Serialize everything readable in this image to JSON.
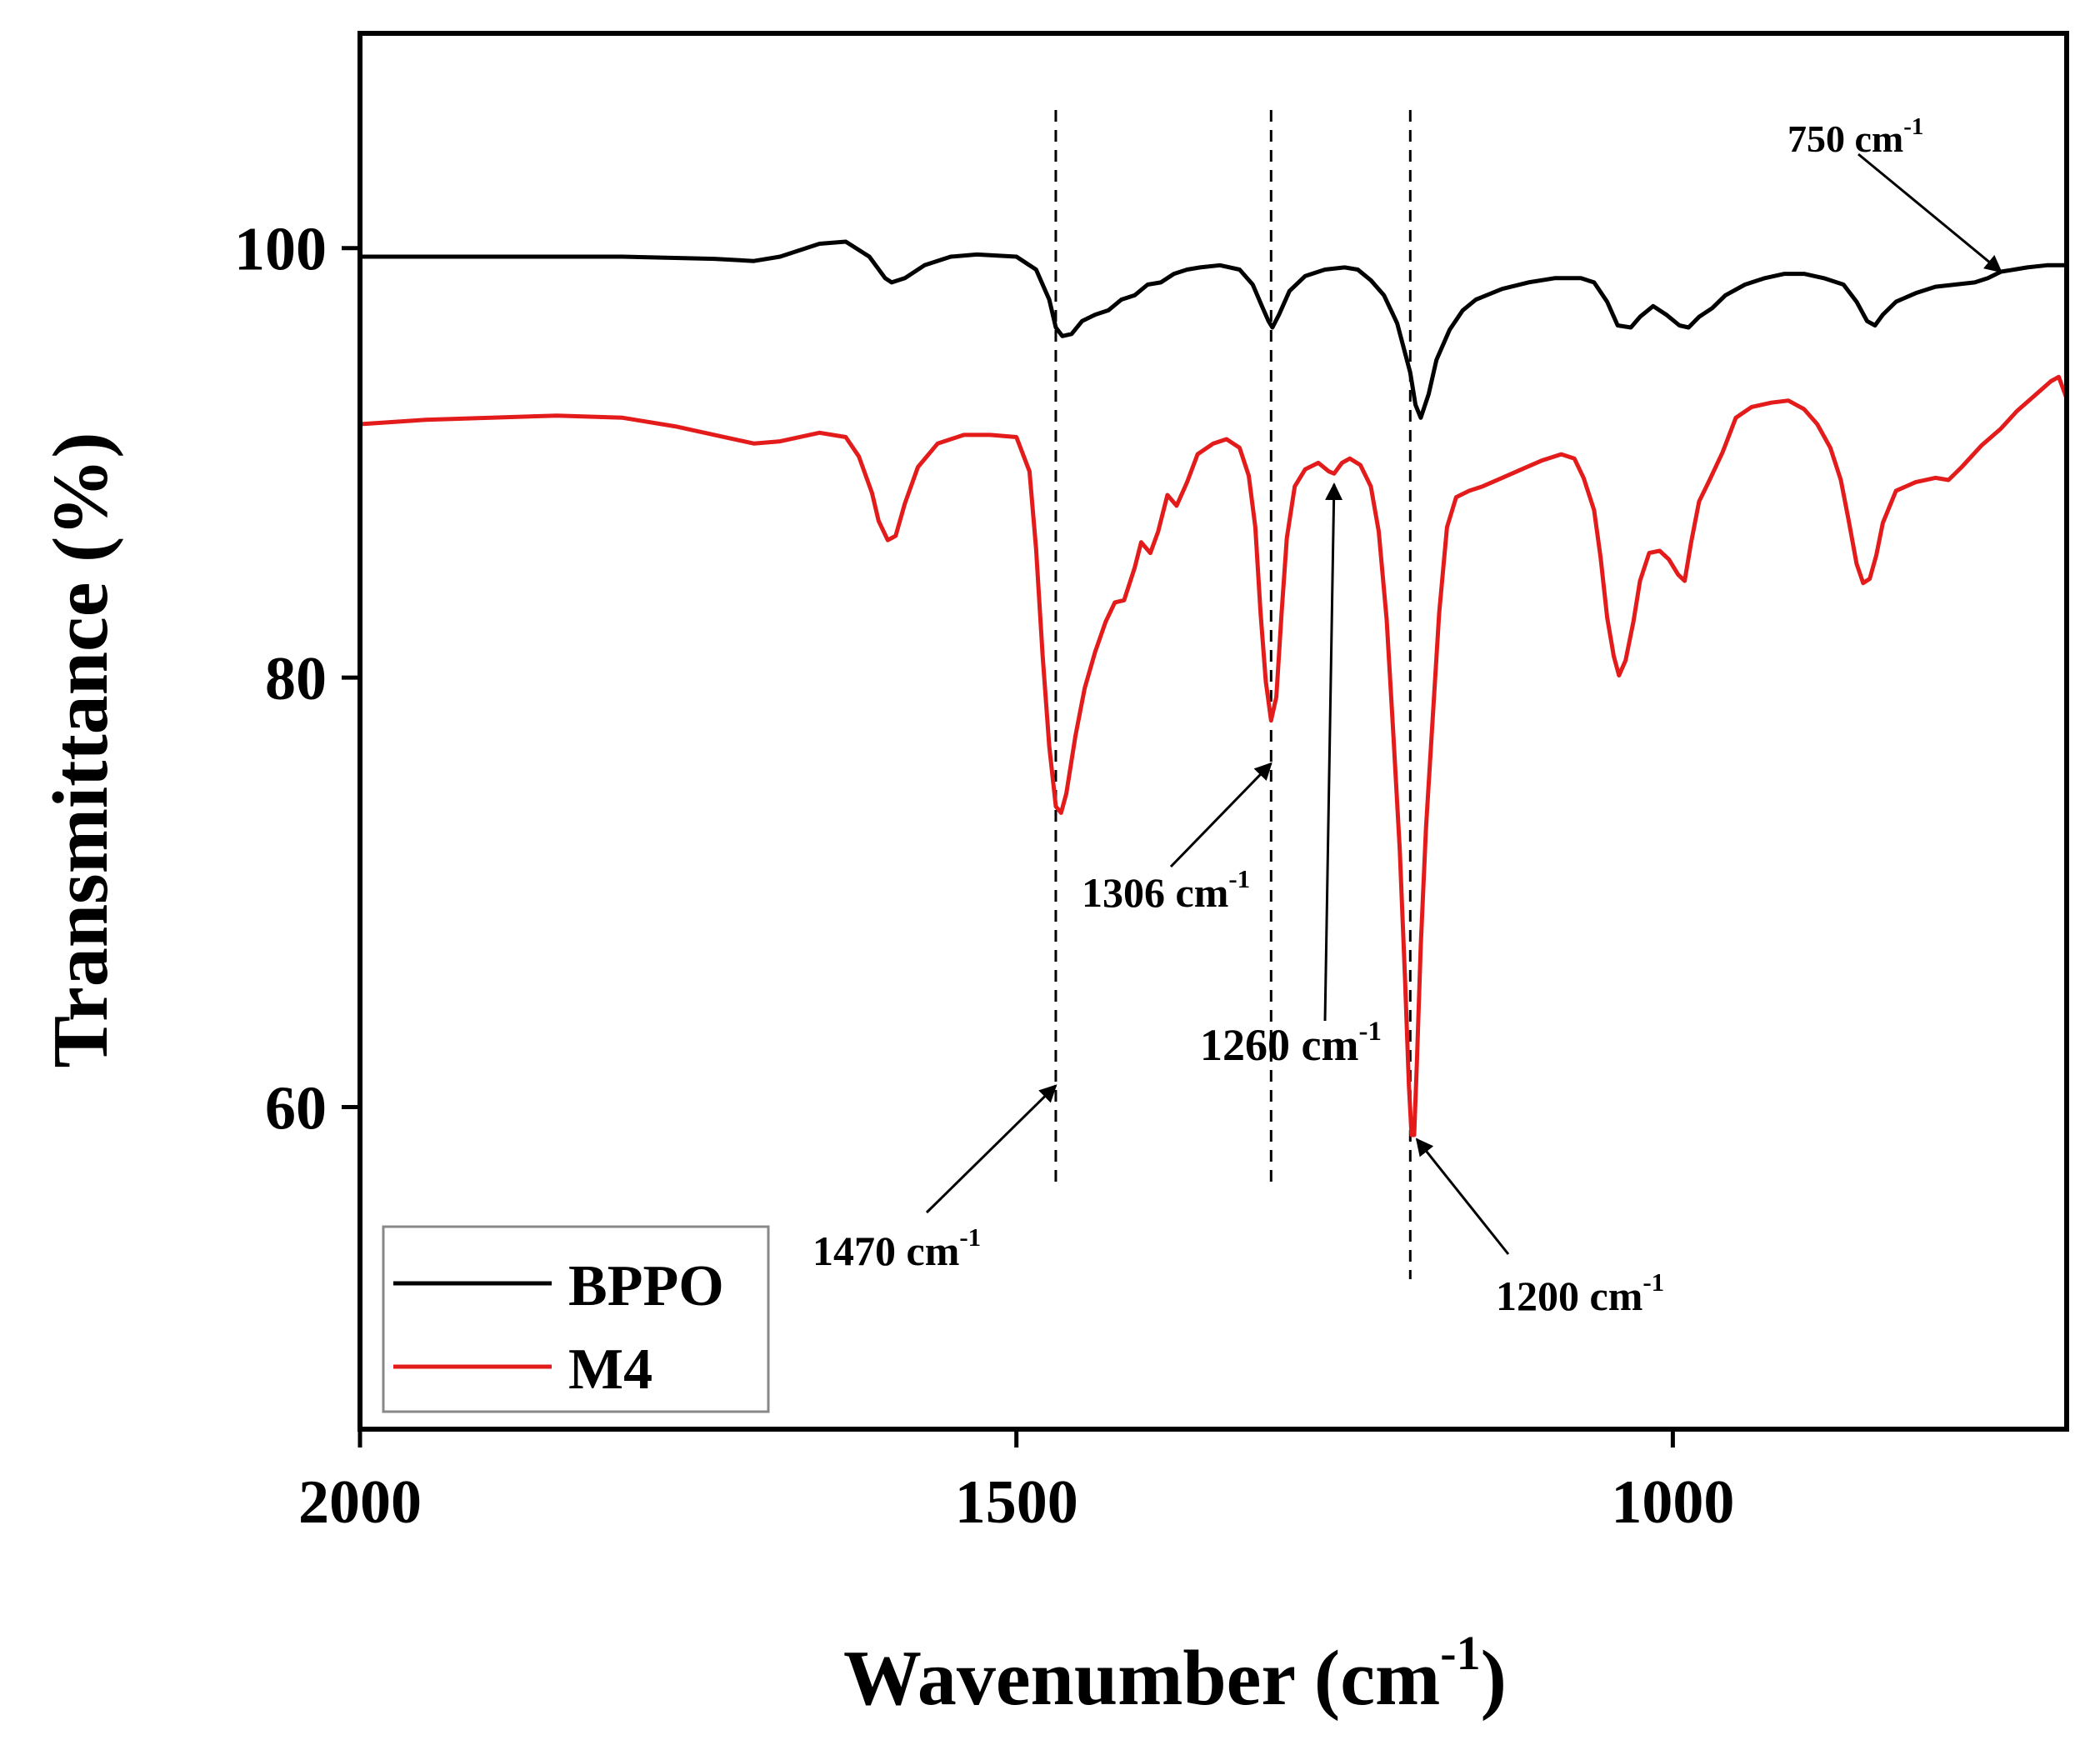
{
  "chart_data": {
    "type": "line",
    "xlabel": "Wavenumber (cm",
    "xlabel_sup": "-1",
    "xlabel_close": ")",
    "ylabel": "Transmittance (%)",
    "xlim": [
      2000,
      700
    ],
    "ylim": [
      45,
      110
    ],
    "x_reversed": true,
    "xticks": [
      2000,
      1500,
      1000
    ],
    "xtick_labels": [
      "2000",
      "1500",
      "1000"
    ],
    "yticks": [
      60,
      80,
      100
    ],
    "ytick_labels": [
      "60",
      "80",
      "100"
    ],
    "legend_position": "bottom-left",
    "series": [
      {
        "name": "BPPO",
        "color": "#000000",
        "points": [
          [
            2000,
            99.6
          ],
          [
            1900,
            99.6
          ],
          [
            1800,
            99.6
          ],
          [
            1730,
            99.5
          ],
          [
            1700,
            99.4
          ],
          [
            1680,
            99.6
          ],
          [
            1650,
            100.2
          ],
          [
            1630,
            100.3
          ],
          [
            1612,
            99.6
          ],
          [
            1600,
            98.6
          ],
          [
            1595,
            98.4
          ],
          [
            1585,
            98.6
          ],
          [
            1570,
            99.2
          ],
          [
            1550,
            99.6
          ],
          [
            1530,
            99.7
          ],
          [
            1500,
            99.6
          ],
          [
            1485,
            99.0
          ],
          [
            1475,
            97.6
          ],
          [
            1470,
            96.3
          ],
          [
            1465,
            95.9
          ],
          [
            1458,
            96.0
          ],
          [
            1450,
            96.6
          ],
          [
            1440,
            96.9
          ],
          [
            1430,
            97.1
          ],
          [
            1420,
            97.6
          ],
          [
            1410,
            97.8
          ],
          [
            1400,
            98.3
          ],
          [
            1390,
            98.4
          ],
          [
            1380,
            98.8
          ],
          [
            1370,
            99.0
          ],
          [
            1360,
            99.1
          ],
          [
            1345,
            99.2
          ],
          [
            1330,
            99.0
          ],
          [
            1320,
            98.3
          ],
          [
            1313,
            97.3
          ],
          [
            1308,
            96.6
          ],
          [
            1305,
            96.3
          ],
          [
            1300,
            96.9
          ],
          [
            1292,
            98.0
          ],
          [
            1280,
            98.7
          ],
          [
            1265,
            99.0
          ],
          [
            1250,
            99.1
          ],
          [
            1240,
            99.0
          ],
          [
            1230,
            98.5
          ],
          [
            1220,
            97.8
          ],
          [
            1210,
            96.5
          ],
          [
            1200,
            94.2
          ],
          [
            1196,
            92.7
          ],
          [
            1192,
            92.1
          ],
          [
            1186,
            93.2
          ],
          [
            1180,
            94.8
          ],
          [
            1170,
            96.2
          ],
          [
            1160,
            97.1
          ],
          [
            1150,
            97.6
          ],
          [
            1130,
            98.1
          ],
          [
            1110,
            98.4
          ],
          [
            1090,
            98.6
          ],
          [
            1070,
            98.6
          ],
          [
            1060,
            98.4
          ],
          [
            1050,
            97.5
          ],
          [
            1042,
            96.4
          ],
          [
            1032,
            96.3
          ],
          [
            1025,
            96.8
          ],
          [
            1015,
            97.3
          ],
          [
            1005,
            96.9
          ],
          [
            995,
            96.4
          ],
          [
            988,
            96.3
          ],
          [
            980,
            96.8
          ],
          [
            970,
            97.2
          ],
          [
            960,
            97.8
          ],
          [
            945,
            98.3
          ],
          [
            930,
            98.6
          ],
          [
            915,
            98.8
          ],
          [
            900,
            98.8
          ],
          [
            885,
            98.6
          ],
          [
            870,
            98.3
          ],
          [
            860,
            97.5
          ],
          [
            852,
            96.6
          ],
          [
            846,
            96.4
          ],
          [
            840,
            96.9
          ],
          [
            830,
            97.5
          ],
          [
            815,
            97.9
          ],
          [
            800,
            98.2
          ],
          [
            785,
            98.3
          ],
          [
            770,
            98.4
          ],
          [
            760,
            98.6
          ],
          [
            750,
            98.9
          ],
          [
            740,
            99.0
          ],
          [
            730,
            99.1
          ],
          [
            715,
            99.2
          ],
          [
            700,
            99.2
          ]
        ]
      },
      {
        "name": "M4",
        "color": "#e31b1b",
        "points": [
          [
            2000,
            91.8
          ],
          [
            1950,
            92.0
          ],
          [
            1900,
            92.1
          ],
          [
            1850,
            92.2
          ],
          [
            1800,
            92.1
          ],
          [
            1760,
            91.7
          ],
          [
            1730,
            91.3
          ],
          [
            1700,
            90.9
          ],
          [
            1680,
            91.0
          ],
          [
            1650,
            91.4
          ],
          [
            1630,
            91.2
          ],
          [
            1620,
            90.3
          ],
          [
            1610,
            88.6
          ],
          [
            1605,
            87.3
          ],
          [
            1598,
            86.4
          ],
          [
            1592,
            86.6
          ],
          [
            1585,
            88.1
          ],
          [
            1575,
            89.8
          ],
          [
            1560,
            90.9
          ],
          [
            1540,
            91.3
          ],
          [
            1520,
            91.3
          ],
          [
            1500,
            91.2
          ],
          [
            1490,
            89.6
          ],
          [
            1485,
            86.0
          ],
          [
            1480,
            81.0
          ],
          [
            1475,
            76.8
          ],
          [
            1470,
            74.0
          ],
          [
            1466,
            73.7
          ],
          [
            1462,
            74.6
          ],
          [
            1455,
            77.3
          ],
          [
            1448,
            79.5
          ],
          [
            1440,
            81.2
          ],
          [
            1432,
            82.6
          ],
          [
            1425,
            83.5
          ],
          [
            1418,
            83.6
          ],
          [
            1410,
            85.1
          ],
          [
            1405,
            86.3
          ],
          [
            1398,
            85.8
          ],
          [
            1392,
            86.8
          ],
          [
            1385,
            88.5
          ],
          [
            1378,
            88.0
          ],
          [
            1370,
            89.1
          ],
          [
            1362,
            90.4
          ],
          [
            1350,
            90.9
          ],
          [
            1340,
            91.1
          ],
          [
            1330,
            90.7
          ],
          [
            1323,
            89.4
          ],
          [
            1318,
            87.0
          ],
          [
            1314,
            83.0
          ],
          [
            1310,
            79.8
          ],
          [
            1306,
            78.0
          ],
          [
            1302,
            79.1
          ],
          [
            1298,
            83.0
          ],
          [
            1294,
            86.5
          ],
          [
            1288,
            88.9
          ],
          [
            1280,
            89.7
          ],
          [
            1270,
            90.0
          ],
          [
            1262,
            89.6
          ],
          [
            1258,
            89.5
          ],
          [
            1252,
            90.0
          ],
          [
            1246,
            90.2
          ],
          [
            1238,
            89.9
          ],
          [
            1230,
            88.9
          ],
          [
            1224,
            86.8
          ],
          [
            1218,
            82.7
          ],
          [
            1213,
            77.5
          ],
          [
            1208,
            72.0
          ],
          [
            1204,
            66.0
          ],
          [
            1201,
            61.0
          ],
          [
            1199,
            58.7
          ],
          [
            1197,
            58.7
          ],
          [
            1195,
            62.0
          ],
          [
            1192,
            67.5
          ],
          [
            1188,
            73.0
          ],
          [
            1184,
            77.0
          ],
          [
            1178,
            83.0
          ],
          [
            1172,
            87.0
          ],
          [
            1165,
            88.4
          ],
          [
            1155,
            88.7
          ],
          [
            1145,
            88.9
          ],
          [
            1130,
            89.3
          ],
          [
            1115,
            89.7
          ],
          [
            1100,
            90.1
          ],
          [
            1085,
            90.4
          ],
          [
            1075,
            90.2
          ],
          [
            1068,
            89.3
          ],
          [
            1060,
            87.8
          ],
          [
            1055,
            85.6
          ],
          [
            1050,
            82.8
          ],
          [
            1045,
            81.0
          ],
          [
            1041,
            80.1
          ],
          [
            1036,
            80.8
          ],
          [
            1030,
            82.6
          ],
          [
            1025,
            84.5
          ],
          [
            1018,
            85.8
          ],
          [
            1010,
            85.9
          ],
          [
            1003,
            85.5
          ],
          [
            996,
            84.8
          ],
          [
            991,
            84.5
          ],
          [
            986,
            86.3
          ],
          [
            980,
            88.2
          ],
          [
            972,
            89.2
          ],
          [
            962,
            90.5
          ],
          [
            952,
            92.1
          ],
          [
            940,
            92.6
          ],
          [
            925,
            92.8
          ],
          [
            912,
            92.9
          ],
          [
            900,
            92.5
          ],
          [
            890,
            91.8
          ],
          [
            880,
            90.7
          ],
          [
            872,
            89.2
          ],
          [
            866,
            87.3
          ],
          [
            860,
            85.3
          ],
          [
            855,
            84.4
          ],
          [
            850,
            84.6
          ],
          [
            845,
            85.7
          ],
          [
            840,
            87.2
          ],
          [
            830,
            88.7
          ],
          [
            815,
            89.1
          ],
          [
            800,
            89.3
          ],
          [
            790,
            89.2
          ],
          [
            780,
            89.8
          ],
          [
            765,
            90.8
          ],
          [
            750,
            91.6
          ],
          [
            738,
            92.4
          ],
          [
            725,
            93.1
          ],
          [
            712,
            93.8
          ],
          [
            706,
            94.0
          ],
          [
            700,
            93.0
          ]
        ]
      }
    ],
    "reference_lines": [
      1470,
      1306,
      1200
    ],
    "annotations": [
      {
        "text": "1470 cm",
        "sup": "-1",
        "x": 1470,
        "y": 61
      },
      {
        "text": "1306 cm",
        "sup": "-1",
        "x": 1306,
        "y": 76
      },
      {
        "text": "1260 cm",
        "sup": "-1",
        "x": 1258,
        "y": 89
      },
      {
        "text": "1200 cm",
        "sup": "-1",
        "x": 1195,
        "y": 58.5
      },
      {
        "text": "750 cm",
        "sup": "-1",
        "x": 750,
        "y": 98.9
      }
    ]
  }
}
